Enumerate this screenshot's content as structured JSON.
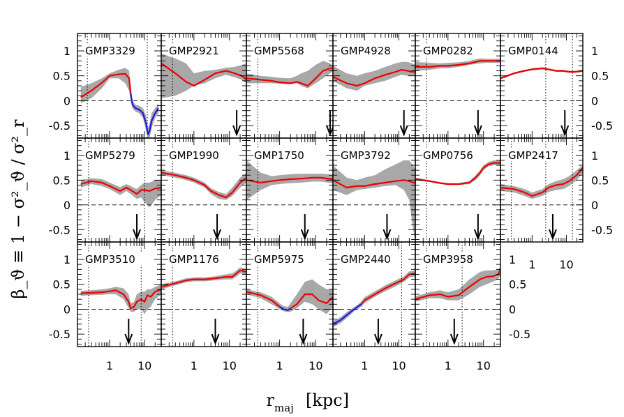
{
  "chart_data": {
    "type": "line",
    "xlabel_main": "r",
    "xlabel_sub": "maj",
    "xlabel_unit": "[kpc]",
    "ylabel": "β_ϑ ≡ 1 − σ²_ϑ / σ²_r",
    "x_scale": "log",
    "xlim": [
      0.12,
      30
    ],
    "ylim": [
      -0.75,
      1.35
    ],
    "yticks": [
      1,
      0.5,
      0,
      -0.5
    ],
    "ytick_labels": [
      "1",
      "0.5",
      "0",
      "-0.5"
    ],
    "xticks": [
      1,
      10
    ],
    "xtick_labels": [
      "1",
      "10"
    ],
    "colors": {
      "profile": "#ee0000",
      "negative_segment": "#1a1ae6",
      "uncertainty": "#a8a8a8"
    },
    "panels": [
      {
        "name": "GMP3329",
        "row": 0,
        "col": 0,
        "vlines": [
          0.23,
          12
        ],
        "arrow": null,
        "x": [
          0.15,
          0.3,
          0.6,
          1,
          1.8,
          2.8,
          3.6,
          4,
          4.5,
          5.5,
          7,
          9,
          11,
          12.5,
          14,
          16,
          20,
          25
        ],
        "y": [
          0.07,
          0.2,
          0.36,
          0.5,
          0.53,
          0.54,
          0.45,
          0.15,
          -0.08,
          -0.15,
          -0.18,
          -0.25,
          -0.45,
          -0.68,
          -0.6,
          -0.4,
          -0.25,
          -0.15
        ],
        "lo": [
          -0.05,
          0.05,
          0.25,
          0.45,
          0.45,
          0.35,
          0.2,
          0.0,
          -0.15,
          -0.22,
          -0.25,
          -0.35,
          -0.6,
          -0.75,
          -0.75,
          -0.55,
          -0.35,
          -0.25
        ],
        "hi": [
          0.28,
          0.35,
          0.45,
          0.55,
          0.62,
          0.66,
          0.6,
          0.3,
          0.0,
          -0.08,
          -0.1,
          -0.15,
          -0.3,
          -0.55,
          -0.45,
          -0.25,
          -0.15,
          -0.05
        ],
        "blue_from": 8
      },
      {
        "name": "GMP2921",
        "row": 0,
        "col": 1,
        "vlines": [
          0.25
        ],
        "arrow": 16,
        "x": [
          0.12,
          0.3,
          0.6,
          1,
          2,
          4,
          8,
          14,
          22,
          30
        ],
        "y": [
          0.75,
          0.55,
          0.38,
          0.3,
          0.42,
          0.55,
          0.6,
          0.55,
          0.5,
          0.43
        ],
        "lo": [
          0.05,
          0.1,
          0.2,
          0.3,
          0.35,
          0.45,
          0.52,
          0.47,
          0.42,
          0.35
        ],
        "hi": [
          0.95,
          0.85,
          0.75,
          0.55,
          0.6,
          0.62,
          0.66,
          0.68,
          0.72,
          0.75
        ],
        "blue_from": null
      },
      {
        "name": "GMP5568",
        "row": 0,
        "col": 2,
        "vlines": [
          0.25
        ],
        "arrow": 25,
        "x": [
          0.12,
          0.3,
          0.6,
          1,
          2,
          3,
          4,
          6,
          10,
          16,
          25,
          30
        ],
        "y": [
          0.45,
          0.42,
          0.4,
          0.37,
          0.35,
          0.38,
          0.35,
          0.3,
          0.45,
          0.6,
          0.65,
          0.65
        ],
        "lo": [
          0.35,
          0.35,
          0.35,
          0.34,
          0.33,
          0.35,
          0.3,
          0.25,
          0.35,
          0.45,
          0.55,
          0.6
        ],
        "hi": [
          0.55,
          0.5,
          0.48,
          0.46,
          0.45,
          0.5,
          0.55,
          0.6,
          0.72,
          0.8,
          0.75,
          0.7
        ],
        "blue_from": null
      },
      {
        "name": "GMP4928",
        "row": 0,
        "col": 3,
        "vlines": [],
        "arrow": 14,
        "x": [
          0.12,
          0.3,
          0.6,
          1,
          2,
          4,
          8,
          12,
          18,
          24,
          30
        ],
        "y": [
          0.48,
          0.35,
          0.3,
          0.35,
          0.45,
          0.52,
          0.58,
          0.62,
          0.6,
          0.58,
          0.58
        ],
        "lo": [
          0.4,
          0.25,
          0.2,
          0.3,
          0.35,
          0.4,
          0.48,
          0.52,
          0.5,
          0.5,
          0.5
        ],
        "hi": [
          0.7,
          0.55,
          0.5,
          0.55,
          0.6,
          0.68,
          0.75,
          0.78,
          0.78,
          0.75,
          0.72
        ],
        "blue_from": null
      },
      {
        "name": "GMP0282",
        "row": 0,
        "col": 4,
        "vlines": [
          0.25
        ],
        "arrow": 7,
        "x": [
          0.12,
          0.3,
          0.6,
          1,
          2,
          4,
          8,
          12,
          20,
          30
        ],
        "y": [
          0.68,
          0.68,
          0.7,
          0.7,
          0.72,
          0.75,
          0.8,
          0.8,
          0.8,
          0.8
        ],
        "lo": [
          0.6,
          0.62,
          0.65,
          0.65,
          0.68,
          0.72,
          0.75,
          0.76,
          0.76,
          0.76
        ],
        "hi": [
          0.78,
          0.76,
          0.75,
          0.76,
          0.77,
          0.8,
          0.85,
          0.84,
          0.84,
          0.84
        ],
        "blue_from": null
      },
      {
        "name": "GMP0144",
        "row": 0,
        "col": 5,
        "vlines": [
          2.5,
          15
        ],
        "arrow": 9,
        "x": [
          0.12,
          0.3,
          0.6,
          1,
          2,
          3,
          5,
          8,
          12,
          18,
          30
        ],
        "y": [
          0.45,
          0.55,
          0.6,
          0.63,
          0.65,
          0.63,
          0.6,
          0.6,
          0.58,
          0.58,
          0.6
        ],
        "lo": [
          0.43,
          0.53,
          0.58,
          0.61,
          0.63,
          0.61,
          0.58,
          0.58,
          0.56,
          0.56,
          0.58
        ],
        "hi": [
          0.47,
          0.57,
          0.62,
          0.65,
          0.67,
          0.65,
          0.62,
          0.62,
          0.6,
          0.6,
          0.62
        ],
        "blue_from": null
      },
      {
        "name": "GMP5279",
        "row": 1,
        "col": 0,
        "vlines": [
          0.25,
          10
        ],
        "arrow": 6,
        "x": [
          0.15,
          0.3,
          0.6,
          1,
          2,
          3,
          4,
          6,
          8,
          10,
          14,
          20,
          30
        ],
        "y": [
          0.42,
          0.48,
          0.45,
          0.38,
          0.28,
          0.35,
          0.3,
          0.22,
          0.3,
          0.3,
          0.28,
          0.33,
          0.35
        ],
        "lo": [
          0.35,
          0.42,
          0.38,
          0.32,
          0.2,
          0.28,
          0.22,
          0.12,
          0.15,
          0.05,
          -0.05,
          0.1,
          0.2
        ],
        "hi": [
          0.5,
          0.54,
          0.52,
          0.45,
          0.36,
          0.42,
          0.38,
          0.32,
          0.4,
          0.45,
          0.45,
          0.5,
          0.5
        ],
        "blue_from": null
      },
      {
        "name": "GMP1990",
        "row": 1,
        "col": 1,
        "vlines": [
          0.25
        ],
        "arrow": 4.5,
        "x": [
          0.12,
          0.3,
          0.6,
          1,
          2,
          3,
          5,
          8,
          12,
          20,
          30
        ],
        "y": [
          0.65,
          0.6,
          0.55,
          0.5,
          0.4,
          0.28,
          0.2,
          0.15,
          0.25,
          0.45,
          0.55
        ],
        "lo": [
          0.6,
          0.55,
          0.5,
          0.45,
          0.35,
          0.22,
          0.12,
          0.1,
          0.18,
          0.35,
          0.45
        ],
        "hi": [
          0.7,
          0.65,
          0.6,
          0.55,
          0.45,
          0.34,
          0.26,
          0.22,
          0.35,
          0.55,
          0.65
        ],
        "blue_from": null
      },
      {
        "name": "GMP1750",
        "row": 1,
        "col": 2,
        "vlines": [
          0.25
        ],
        "arrow": 5,
        "x": [
          0.12,
          0.3,
          0.6,
          1,
          2,
          4,
          8,
          14,
          22,
          30
        ],
        "y": [
          0.5,
          0.45,
          0.48,
          0.5,
          0.52,
          0.53,
          0.55,
          0.55,
          0.53,
          0.52
        ],
        "lo": [
          0.1,
          0.3,
          0.4,
          0.42,
          0.44,
          0.45,
          0.47,
          0.47,
          0.45,
          0.44
        ],
        "hi": [
          0.9,
          0.65,
          0.58,
          0.6,
          0.62,
          0.63,
          0.63,
          0.63,
          0.62,
          0.6
        ],
        "blue_from": null
      },
      {
        "name": "GMP3792",
        "row": 1,
        "col": 3,
        "vlines": [],
        "arrow": 4.5,
        "x": [
          0.12,
          0.3,
          0.6,
          1,
          2,
          4,
          8,
          14,
          20,
          26,
          30
        ],
        "y": [
          0.5,
          0.35,
          0.38,
          0.38,
          0.42,
          0.45,
          0.48,
          0.5,
          0.48,
          0.45,
          0.45
        ],
        "lo": [
          0.3,
          0.2,
          0.3,
          0.32,
          0.35,
          0.38,
          0.4,
          0.3,
          0.1,
          -0.5,
          -0.75
        ],
        "hi": [
          0.8,
          0.55,
          0.5,
          0.55,
          0.6,
          0.72,
          0.82,
          0.9,
          0.9,
          0.8,
          0.7
        ],
        "blue_from": null
      },
      {
        "name": "GMP0756",
        "row": 1,
        "col": 4,
        "vlines": [
          0.25
        ],
        "arrow": 7,
        "x": [
          0.12,
          0.3,
          0.6,
          1,
          2,
          4,
          6,
          8,
          10,
          14,
          20,
          30
        ],
        "y": [
          0.52,
          0.48,
          0.44,
          0.42,
          0.42,
          0.45,
          0.55,
          0.65,
          0.75,
          0.82,
          0.85,
          0.85
        ],
        "lo": [
          0.5,
          0.46,
          0.42,
          0.4,
          0.4,
          0.42,
          0.5,
          0.6,
          0.7,
          0.78,
          0.8,
          0.8
        ],
        "hi": [
          0.55,
          0.5,
          0.46,
          0.44,
          0.44,
          0.48,
          0.6,
          0.7,
          0.8,
          0.87,
          0.9,
          0.9
        ],
        "blue_from": null
      },
      {
        "name": "GMP2417",
        "row": 1,
        "col": 5,
        "vlines": [
          0.25,
          2.5,
          15
        ],
        "arrow": 4,
        "x": [
          0.12,
          0.3,
          0.6,
          1,
          2,
          3,
          5,
          8,
          12,
          20,
          30
        ],
        "y": [
          0.35,
          0.32,
          0.25,
          0.18,
          0.25,
          0.35,
          0.4,
          0.42,
          0.48,
          0.6,
          0.75
        ],
        "lo": [
          0.28,
          0.25,
          0.18,
          0.12,
          0.18,
          0.26,
          0.3,
          0.32,
          0.38,
          0.5,
          0.65
        ],
        "hi": [
          0.42,
          0.38,
          0.32,
          0.25,
          0.32,
          0.42,
          0.48,
          0.52,
          0.58,
          0.7,
          0.8
        ],
        "blue_from": null
      },
      {
        "name": "GMP3510",
        "row": 2,
        "col": 0,
        "vlines": [
          0.25,
          8
        ],
        "arrow": 3.5,
        "x": [
          0.15,
          0.3,
          0.6,
          1,
          1.5,
          2.5,
          3.5,
          4,
          5,
          6,
          8,
          10,
          12,
          15,
          20,
          30
        ],
        "y": [
          0.32,
          0.33,
          0.34,
          0.36,
          0.38,
          0.3,
          0.15,
          0.02,
          0.05,
          0.15,
          0.2,
          0.15,
          0.28,
          0.25,
          0.35,
          0.4
        ],
        "lo": [
          0.27,
          0.28,
          0.29,
          0.3,
          0.3,
          0.2,
          0.02,
          -0.05,
          -0.05,
          0.0,
          0.0,
          -0.1,
          0.0,
          0.05,
          0.2,
          0.3
        ],
        "hi": [
          0.37,
          0.38,
          0.4,
          0.42,
          0.45,
          0.42,
          0.3,
          0.12,
          0.15,
          0.3,
          0.35,
          0.35,
          0.4,
          0.4,
          0.45,
          0.5
        ],
        "blue_from": null
      },
      {
        "name": "GMP1176",
        "row": 2,
        "col": 1,
        "vlines": [
          0.25
        ],
        "arrow": 4,
        "x": [
          0.12,
          0.3,
          0.6,
          1,
          2,
          4,
          8,
          12,
          16,
          20,
          25,
          30
        ],
        "y": [
          0.45,
          0.52,
          0.58,
          0.6,
          0.6,
          0.62,
          0.65,
          0.65,
          0.72,
          0.78,
          0.76,
          0.75
        ],
        "lo": [
          0.4,
          0.48,
          0.54,
          0.56,
          0.56,
          0.58,
          0.6,
          0.6,
          0.66,
          0.72,
          0.7,
          0.7
        ],
        "hi": [
          0.5,
          0.56,
          0.62,
          0.64,
          0.64,
          0.66,
          0.7,
          0.72,
          0.78,
          0.84,
          0.82,
          0.8
        ],
        "blue_from": null
      },
      {
        "name": "GMP5975",
        "row": 2,
        "col": 2,
        "vlines": [
          0.25
        ],
        "arrow": 4.5,
        "x": [
          0.12,
          0.3,
          0.6,
          1,
          1.3,
          1.7,
          2,
          3,
          5,
          8,
          12,
          20,
          30
        ],
        "y": [
          0.35,
          0.28,
          0.18,
          0.05,
          0.0,
          -0.02,
          0.02,
          0.1,
          0.3,
          0.3,
          0.18,
          0.12,
          0.25
        ],
        "lo": [
          0.3,
          0.22,
          0.1,
          0.0,
          -0.04,
          -0.06,
          -0.05,
          0.02,
          0.15,
          0.1,
          0.0,
          -0.1,
          0.05
        ],
        "hi": [
          0.4,
          0.34,
          0.25,
          0.12,
          0.06,
          0.05,
          0.12,
          0.3,
          0.55,
          0.6,
          0.5,
          0.4,
          0.4
        ],
        "blue_from": null,
        "blue_range": [
          3,
          6
        ]
      },
      {
        "name": "GMP2440",
        "row": 2,
        "col": 3,
        "vlines": [
          12
        ],
        "arrow": 2.5,
        "x": [
          0.12,
          0.2,
          0.3,
          0.5,
          0.8,
          1,
          2,
          4,
          8,
          14,
          20,
          30
        ],
        "y": [
          -0.3,
          -0.22,
          -0.12,
          0.0,
          0.1,
          0.18,
          0.3,
          0.42,
          0.52,
          0.6,
          0.7,
          0.72
        ],
        "lo": [
          -0.36,
          -0.28,
          -0.18,
          -0.04,
          0.05,
          0.12,
          0.25,
          0.36,
          0.46,
          0.55,
          0.64,
          0.66
        ],
        "hi": [
          -0.24,
          -0.16,
          -0.06,
          0.04,
          0.15,
          0.24,
          0.36,
          0.48,
          0.58,
          0.66,
          0.76,
          0.78
        ],
        "blue_to": 4
      },
      {
        "name": "GMP3958",
        "row": 2,
        "col": 4,
        "vlines": [
          0.25,
          2.5
        ],
        "arrow": 1.5,
        "x": [
          0.12,
          0.3,
          0.6,
          1,
          2,
          4,
          8,
          12,
          18,
          26,
          30
        ],
        "y": [
          0.2,
          0.28,
          0.3,
          0.25,
          0.28,
          0.45,
          0.6,
          0.65,
          0.66,
          0.7,
          0.8
        ],
        "lo": [
          0.15,
          0.22,
          0.22,
          0.18,
          0.18,
          0.3,
          0.45,
          0.5,
          0.55,
          0.6,
          0.7
        ],
        "hi": [
          0.26,
          0.34,
          0.38,
          0.34,
          0.4,
          0.6,
          0.75,
          0.78,
          0.78,
          0.8,
          0.85
        ],
        "blue_from": null
      }
    ]
  }
}
